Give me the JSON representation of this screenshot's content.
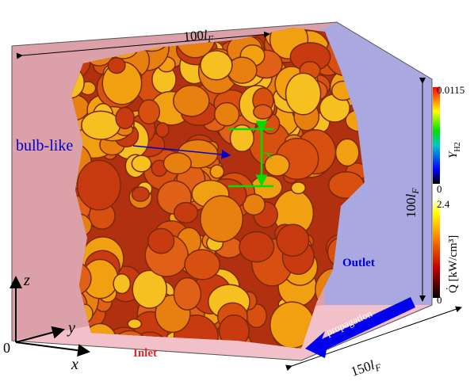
{
  "annotations": {
    "top_length": {
      "number": "100",
      "symbol": "l",
      "subscript": "F"
    },
    "right_length": {
      "number": "100",
      "symbol": "l",
      "subscript": "F"
    },
    "depth_length": {
      "number": "150",
      "symbol": "l",
      "subscript": "F"
    },
    "bulb_label": "bulb-like",
    "wavelength": "λ",
    "outlet": "Outlet",
    "inlet": "Inlet",
    "propagation": "propagation"
  },
  "axes": {
    "z": "z",
    "y": "y",
    "x": "x",
    "origin": "0"
  },
  "colorbars": [
    {
      "symbol": "Y",
      "subscript": "H2",
      "max": 0.0115,
      "min": 0
    },
    {
      "label": "Q̇ [kW/cm³]",
      "max": 2.4,
      "min": 0
    }
  ]
}
